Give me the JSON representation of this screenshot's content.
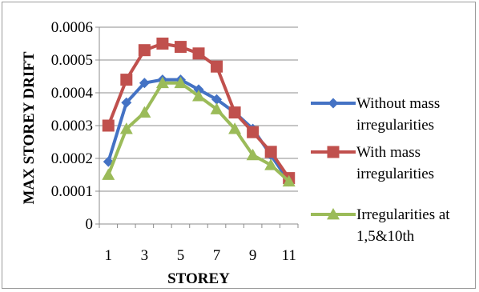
{
  "chart_data": {
    "type": "line",
    "title": "",
    "xlabel": "STOREY",
    "ylabel": "MAX STOREY DRIFT",
    "x": [
      1,
      2,
      3,
      4,
      5,
      6,
      7,
      8,
      9,
      10,
      11
    ],
    "x_tick_labels": [
      "1",
      "3",
      "5",
      "7",
      "9",
      "11"
    ],
    "x_tick_values": [
      1,
      3,
      5,
      7,
      9,
      11
    ],
    "y_tick_labels": [
      "0",
      "0.0001",
      "0.0002",
      "0.0003",
      "0.0004",
      "0.0005",
      "0.0006"
    ],
    "y_tick_values": [
      0,
      0.0001,
      0.0002,
      0.0003,
      0.0004,
      0.0005,
      0.0006
    ],
    "xlim": [
      0.5,
      11.5
    ],
    "ylim": [
      0,
      0.0006
    ],
    "grid": "horizontal",
    "legend_position": "right",
    "series": [
      {
        "legend_lines": [
          "Without mass",
          "irregularities"
        ],
        "color": "#4472C4",
        "marker": "diamond",
        "values": [
          0.00019,
          0.00037,
          0.00043,
          0.00044,
          0.00044,
          0.00041,
          0.00038,
          0.00034,
          0.00029,
          0.00021,
          0.00013
        ]
      },
      {
        "legend_lines": [
          "With mass",
          "irregularities"
        ],
        "color": "#C0504D",
        "marker": "square",
        "values": [
          0.0003,
          0.00044,
          0.00053,
          0.00055,
          0.00054,
          0.00052,
          0.00048,
          0.00034,
          0.00028,
          0.00022,
          0.00014
        ]
      },
      {
        "legend_lines": [
          "Irregularities at",
          "1,5&10th"
        ],
        "color": "#9BBB59",
        "marker": "triangle",
        "values": [
          0.00015,
          0.00029,
          0.00034,
          0.00043,
          0.00043,
          0.00039,
          0.00035,
          0.00029,
          0.00021,
          0.00018,
          0.00013
        ]
      }
    ]
  }
}
